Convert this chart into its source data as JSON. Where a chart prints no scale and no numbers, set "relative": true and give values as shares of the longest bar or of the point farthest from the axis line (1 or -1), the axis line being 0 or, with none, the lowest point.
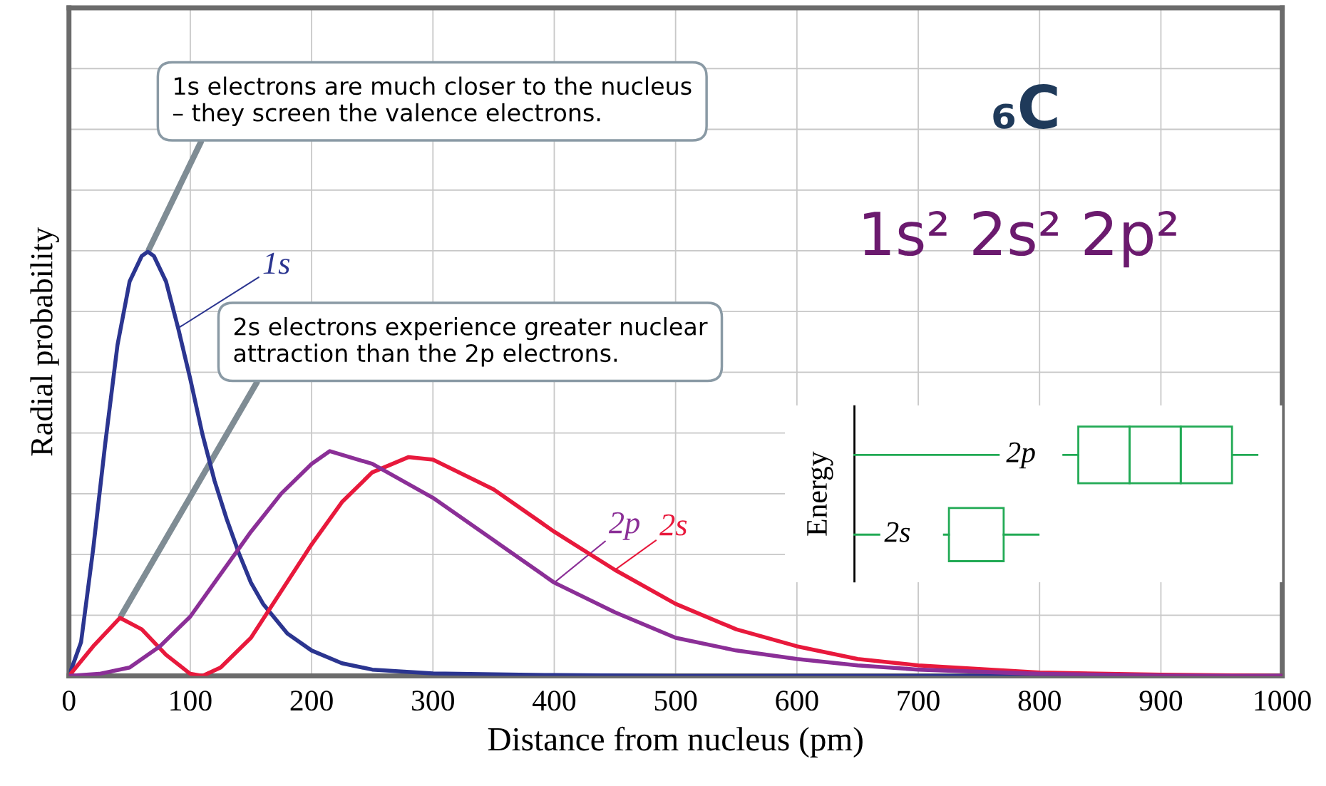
{
  "chart_data": {
    "type": "line",
    "relative": true,
    "xlabel": "Distance from nucleus (pm)",
    "ylabel": "Radial probability",
    "xlim": [
      0,
      1000
    ],
    "xticks": [
      0,
      100,
      200,
      300,
      400,
      500,
      600,
      700,
      800,
      900,
      1000
    ],
    "grid": true,
    "marker": "none",
    "line_style": "solid",
    "legend": false,
    "series": [
      {
        "name": "1s",
        "color": "#2b3590",
        "x": [
          0,
          10,
          20,
          30,
          40,
          50,
          60,
          65,
          70,
          80,
          90,
          100,
          110,
          120,
          130,
          140,
          150,
          160,
          180,
          200,
          225,
          250,
          300,
          400,
          500,
          1000
        ],
        "values": [
          0,
          0.08,
          0.3,
          0.55,
          0.78,
          0.93,
          0.99,
          1.0,
          0.99,
          0.93,
          0.82,
          0.7,
          0.57,
          0.46,
          0.37,
          0.29,
          0.22,
          0.17,
          0.1,
          0.06,
          0.03,
          0.015,
          0.006,
          0.002,
          0,
          0
        ]
      },
      {
        "name": "2s",
        "color": "#e8193c",
        "x": [
          0,
          20,
          42,
          60,
          80,
          100,
          110,
          125,
          150,
          175,
          200,
          225,
          250,
          280,
          300,
          350,
          400,
          450,
          500,
          550,
          600,
          650,
          700,
          800,
          900,
          1000
        ],
        "values": [
          0,
          0.07,
          0.137,
          0.11,
          0.05,
          0.005,
          0,
          0.02,
          0.09,
          0.2,
          0.31,
          0.41,
          0.48,
          0.516,
          0.51,
          0.44,
          0.34,
          0.25,
          0.17,
          0.11,
          0.07,
          0.04,
          0.025,
          0.008,
          0.003,
          0
        ]
      },
      {
        "name": "2p",
        "color": "#8b2f97",
        "x": [
          0,
          25,
          50,
          75,
          100,
          125,
          150,
          175,
          200,
          215,
          250,
          300,
          350,
          400,
          450,
          500,
          550,
          600,
          650,
          700,
          800,
          900,
          1000
        ],
        "values": [
          0,
          0.005,
          0.02,
          0.07,
          0.14,
          0.24,
          0.34,
          0.43,
          0.5,
          0.53,
          0.5,
          0.42,
          0.32,
          0.22,
          0.15,
          0.09,
          0.06,
          0.04,
          0.025,
          0.015,
          0.005,
          0.001,
          0
        ]
      }
    ],
    "annotations": [
      {
        "text": "1s electrons are much closer to the nucleus\n– they screen the valence electrons.",
        "x": 65,
        "y": 1.0
      },
      {
        "text": "2s electrons experience greater nuclear\nattraction than the 2p electrons.",
        "x": 42,
        "y": 0.137
      },
      "₆C",
      "1s² 2s² 2p²",
      "Energy",
      "2p",
      "2s"
    ]
  }
}
